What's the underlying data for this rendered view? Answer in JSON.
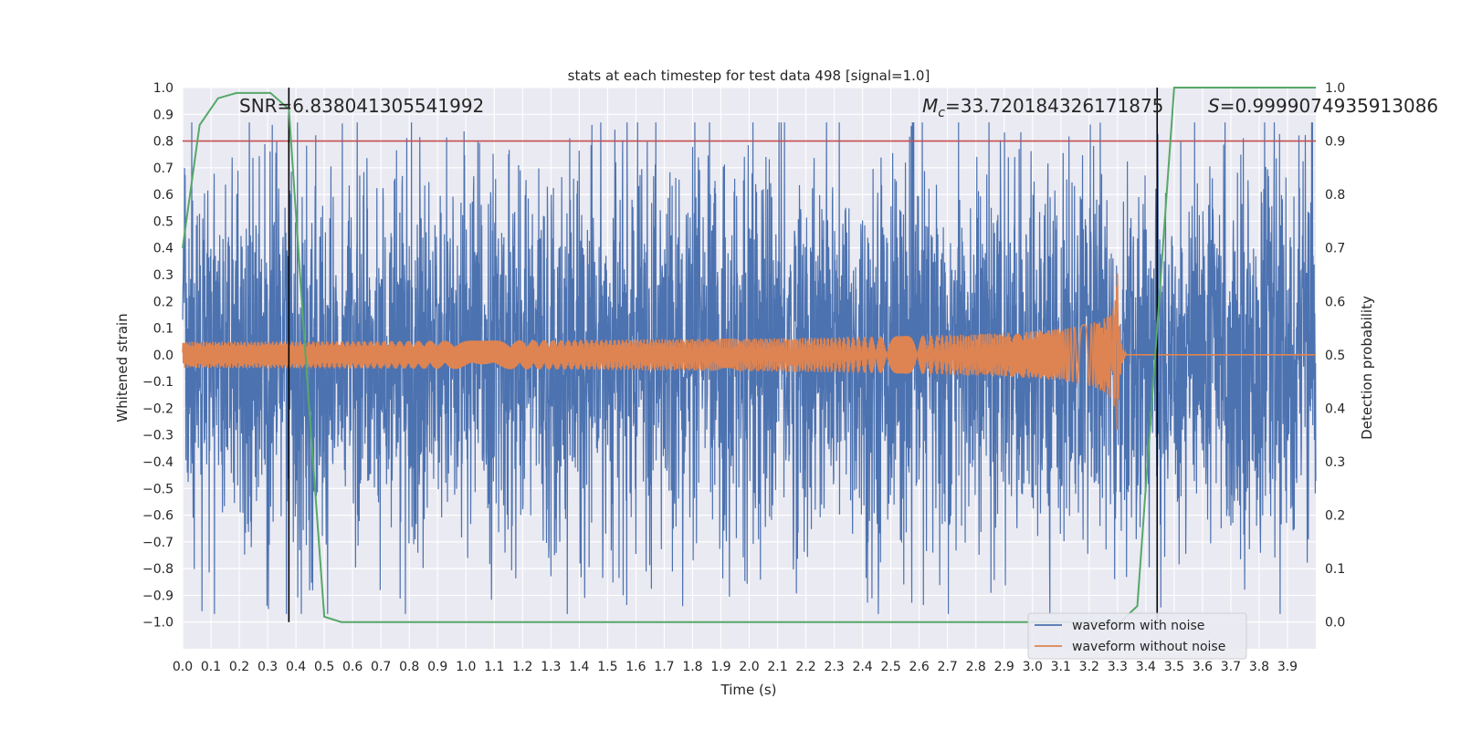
{
  "chart_data": {
    "type": "line",
    "title": "stats at each timestep for test data 498 [signal=1.0]",
    "xlabel": "Time (s)",
    "ylabel": "Whitened strain",
    "y2label": "Detection probability",
    "xlim": [
      0.0,
      4.0
    ],
    "ylim": [
      -1.1,
      1.0
    ],
    "y2lim": [
      -0.05,
      1.0
    ],
    "grid": true,
    "x_ticks": [
      "0.0",
      "0.1",
      "0.2",
      "0.3",
      "0.4",
      "0.5",
      "0.6",
      "0.7",
      "0.8",
      "0.9",
      "1.0",
      "1.1",
      "1.2",
      "1.3",
      "1.4",
      "1.5",
      "1.6",
      "1.7",
      "1.8",
      "1.9",
      "2.0",
      "2.1",
      "2.2",
      "2.3",
      "2.4",
      "2.5",
      "2.6",
      "2.7",
      "2.8",
      "2.9",
      "3.0",
      "3.1",
      "3.2",
      "3.3",
      "3.4",
      "3.5",
      "3.6",
      "3.7",
      "3.8",
      "3.9"
    ],
    "y_ticks": [
      "1.0",
      "0.9",
      "0.8",
      "0.7",
      "0.6",
      "0.5",
      "0.4",
      "0.3",
      "0.2",
      "0.1",
      "0.0",
      "−0.1",
      "−0.2",
      "−0.3",
      "−0.4",
      "−0.5",
      "−0.6",
      "−0.7",
      "−0.8",
      "−0.9",
      "−1.0"
    ],
    "y2_ticks": [
      "1.0",
      "0.9",
      "0.8",
      "0.7",
      "0.6",
      "0.5",
      "0.4",
      "0.3",
      "0.2",
      "0.1",
      "0.0"
    ],
    "annotations": {
      "snr": "SNR=6.838041305541992",
      "mc_symbol": "M",
      "mc_sub": "c",
      "mc_value": "=33.720184326171875",
      "s_symbol": "S",
      "s_value": "=0.9999074935913086"
    },
    "threshold_line": {
      "axis": "right",
      "value": 0.9,
      "color": "#c44e52"
    },
    "vertical_lines": [
      0.375,
      3.44
    ],
    "series": [
      {
        "name": "waveform with noise",
        "color": "#4c72b0",
        "axis": "left",
        "noise_amplitude": 0.35,
        "peak_range": [
          -0.97,
          0.87
        ]
      },
      {
        "name": "waveform without noise",
        "color": "#dd8452",
        "axis": "left",
        "merger_time": 3.3,
        "peak_amplitude": 0.39
      },
      {
        "name": "Detection probability",
        "color": "#55a868",
        "axis": "right",
        "points": [
          [
            0.0,
            0.7
          ],
          [
            0.06,
            0.93
          ],
          [
            0.125,
            0.98
          ],
          [
            0.19,
            0.99
          ],
          [
            0.25,
            0.99
          ],
          [
            0.31,
            0.99
          ],
          [
            0.375,
            0.96
          ],
          [
            0.44,
            0.45
          ],
          [
            0.5,
            0.01
          ],
          [
            0.56,
            0.0
          ],
          [
            0.625,
            0.0
          ],
          [
            1.0,
            0.0
          ],
          [
            1.5,
            0.0
          ],
          [
            2.0,
            0.0
          ],
          [
            2.5,
            0.0
          ],
          [
            3.0,
            0.0
          ],
          [
            3.31,
            0.0
          ],
          [
            3.37,
            0.03
          ],
          [
            3.44,
            0.55
          ],
          [
            3.5,
            1.0
          ],
          [
            3.56,
            1.0
          ],
          [
            3.625,
            1.0
          ],
          [
            4.0,
            1.0
          ]
        ]
      }
    ],
    "legend": {
      "placement": "lower-right",
      "entries": [
        "waveform with noise",
        "waveform without noise"
      ]
    }
  }
}
